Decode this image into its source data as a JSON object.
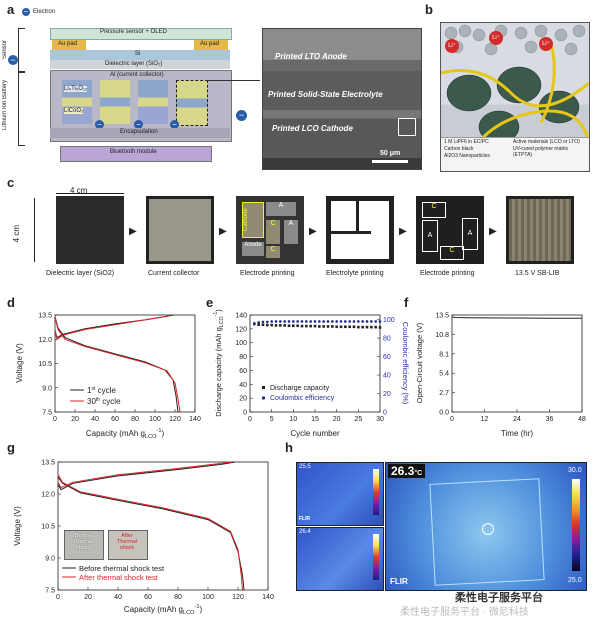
{
  "panel_labels": [
    "a",
    "b",
    "c",
    "d",
    "e",
    "f",
    "g",
    "h"
  ],
  "panel_a": {
    "electron_legend": "Electron",
    "pressure_sensor": "Pressure sensor + OLED",
    "au_pad_left": "Au pad",
    "au_pad_right": "Au pad",
    "si": "Si",
    "sensor": "Sensor",
    "dielectric": "Dielectric layer (SiO₂)",
    "current_collector": "Al (current collector)",
    "lto": "Li₄Ti₅O₁₂",
    "lco": "LiCoO₂",
    "battery": "Lithium Ion Battery",
    "encapsulation": "Encapsulation",
    "bluetooth": "Bluetooth module",
    "sem_anode": "Printed LTO Anode",
    "sem_electrolyte": "Printed Solid-State Electrolyte",
    "sem_cathode": "Printed LCO Cathode",
    "scale": "50 μm"
  },
  "panel_b": {
    "li": "Li⁺",
    "legend": [
      "1 M LiPF6 in EC/PC",
      "Active materials (LCO or LTO)",
      "Carbon black",
      "UV-cured polymer matrix (ETPTA)",
      "Al2O3 Nanoparticles"
    ]
  },
  "panel_c": {
    "width_label": "4 cm",
    "height_label": "4 cm",
    "captions": [
      "Dielectric layer (SiO2)",
      "Current collector",
      "Electrode printing",
      "Electrolyte printing",
      "Electrode printing",
      "13.5 V SB-LIB"
    ],
    "electrode_labels": {
      "cathode": "Cathode",
      "a1": "A",
      "c1": "C",
      "a2": "A",
      "c2": "C",
      "anode": "Anode"
    },
    "electrode2_labels": {
      "c1": "C",
      "a1": "A",
      "a2": "A",
      "c2": "C"
    }
  },
  "colors": {
    "black_series": "#222222",
    "red_series": "#d9252a",
    "navy_series": "#1f2a8a",
    "blue_axis": "#2a2fb0"
  },
  "chart_data": [
    {
      "panel": "d",
      "type": "line",
      "xlabel": "Capacity (mAh g",
      "xlabel_sub": "LCO",
      "xlabel_sup": "-1",
      "xlabel_end": ")",
      "ylabel": "Voltage (V)",
      "xlim": [
        0,
        140
      ],
      "ylim": [
        7.5,
        13.5
      ],
      "xticks": [
        "0",
        "20",
        "40",
        "60",
        "80",
        "100",
        "120",
        "140"
      ],
      "yticks": [
        "7.5",
        "9.0",
        "10.5",
        "12.0",
        "13.5"
      ],
      "series": [
        {
          "name": "1st cycle",
          "name_main": "1",
          "name_sup": "st",
          "name_tail": " cycle",
          "color": "#222222",
          "charge": [
            [
              0,
              12.55
            ],
            [
              2,
              12.1
            ],
            [
              8,
              12.3
            ],
            [
              30,
              12.65
            ],
            [
              60,
              12.95
            ],
            [
              90,
              13.2
            ],
            [
              110,
              13.4
            ],
            [
              118,
              13.5
            ]
          ],
          "discharge": [
            [
              0,
              13.4
            ],
            [
              3,
              12.7
            ],
            [
              10,
              12.1
            ],
            [
              30,
              11.6
            ],
            [
              60,
              11.1
            ],
            [
              90,
              10.6
            ],
            [
              110,
              10.1
            ],
            [
              118,
              9.5
            ],
            [
              121,
              8.5
            ],
            [
              123,
              7.5
            ]
          ]
        },
        {
          "name": "30th cycle",
          "name_main": "30",
          "name_sup": "th",
          "name_tail": " cycle",
          "color": "#d9252a",
          "charge": [
            [
              0,
              12.5
            ],
            [
              2,
              12.0
            ],
            [
              8,
              12.25
            ],
            [
              30,
              12.6
            ],
            [
              60,
              12.9
            ],
            [
              90,
              13.2
            ],
            [
              115,
              13.45
            ],
            [
              120,
              13.5
            ]
          ],
          "discharge": [
            [
              0,
              13.35
            ],
            [
              3,
              12.6
            ],
            [
              10,
              12.0
            ],
            [
              30,
              11.55
            ],
            [
              60,
              11.05
            ],
            [
              90,
              10.55
            ],
            [
              112,
              10.05
            ],
            [
              120,
              9.3
            ],
            [
              123,
              8.3
            ],
            [
              125,
              7.5
            ]
          ]
        }
      ]
    },
    {
      "panel": "e",
      "type": "scatter",
      "xlabel": "Cycle number",
      "ylabel": "Discharge capacity (mAh g",
      "ylabel_sub": "LCO",
      "ylabel_sup": "-1",
      "ylabel_end": ")",
      "y2label": "Coulombic efficiency (%)",
      "xlim": [
        0,
        30
      ],
      "ylim": [
        0,
        140
      ],
      "y2lim": [
        0,
        105
      ],
      "xticks": [
        "0",
        "5",
        "10",
        "15",
        "20",
        "25",
        "30"
      ],
      "yticks": [
        "0",
        "20",
        "40",
        "60",
        "80",
        "100",
        "120",
        "140"
      ],
      "y2ticks": [
        "0",
        "20",
        "40",
        "60",
        "80",
        "100"
      ],
      "series": [
        {
          "name": "Discharge capacity",
          "axis": "left",
          "color": "#222222",
          "values": [
            127,
            126,
            126,
            125.5,
            125.5,
            125,
            125,
            125,
            124.5,
            124.5,
            124.5,
            124,
            124,
            124,
            124,
            123.5,
            123.5,
            123.5,
            123.5,
            123,
            123,
            123,
            123,
            123,
            122.5,
            122.5,
            122.5,
            122.5,
            122.5,
            122
          ]
        },
        {
          "name": "Coulombic efficiency",
          "axis": "right",
          "color": "#1f2a8a",
          "values": [
            96,
            97,
            97.5,
            97.5,
            98,
            98,
            98,
            98,
            98,
            98,
            98,
            98,
            98,
            98,
            98,
            98,
            98,
            98,
            98,
            98,
            98,
            98,
            98,
            98,
            98,
            98,
            98,
            98,
            98,
            98
          ]
        }
      ]
    },
    {
      "panel": "f",
      "type": "line",
      "xlabel": "Time (hr)",
      "ylabel": "Open-Circuit voltage (V)",
      "xlim": [
        0,
        48
      ],
      "ylim": [
        0,
        13.5
      ],
      "xticks": [
        "0",
        "12",
        "24",
        "36",
        "48"
      ],
      "yticks": [
        "0.0",
        "2.7",
        "5.4",
        "8.1",
        "10.8",
        "13.5"
      ],
      "series": [
        {
          "color": "#222222",
          "x": [
            0,
            1,
            6,
            12,
            24,
            36,
            48
          ],
          "y": [
            13.25,
            13.15,
            13.12,
            13.1,
            13.08,
            13.06,
            13.05
          ]
        }
      ]
    },
    {
      "panel": "g",
      "type": "line",
      "xlabel": "Capacity (mAh g",
      "xlabel_sub": "LCO",
      "xlabel_sup": "-1",
      "xlabel_end": ")",
      "ylabel": "Voltage (V)",
      "xlim": [
        0,
        140
      ],
      "ylim": [
        7.5,
        13.5
      ],
      "xticks": [
        "0",
        "20",
        "40",
        "60",
        "80",
        "100",
        "120",
        "140"
      ],
      "yticks": [
        "7.5",
        "9.0",
        "10.5",
        "12.0",
        "13.5"
      ],
      "inset": {
        "before": "Before Thermal shock",
        "after": "After Thermal shock"
      },
      "series": [
        {
          "name": "Before thermal shock test",
          "color": "#222222",
          "charge": [
            [
              0,
              12.45
            ],
            [
              2,
              12.2
            ],
            [
              10,
              12.5
            ],
            [
              40,
              12.85
            ],
            [
              80,
              13.15
            ],
            [
              110,
              13.4
            ],
            [
              118,
              13.5
            ]
          ],
          "discharge": [
            [
              0,
              12.8
            ],
            [
              3,
              12.5
            ],
            [
              15,
              12.05
            ],
            [
              40,
              11.7
            ],
            [
              70,
              11.3
            ],
            [
              100,
              10.8
            ],
            [
              115,
              10.2
            ],
            [
              120,
              9.3
            ],
            [
              123,
              8.2
            ],
            [
              124,
              7.5
            ]
          ]
        },
        {
          "name": "After thermal shock test",
          "color": "#d9252a",
          "charge": [
            [
              0,
              12.55
            ],
            [
              2,
              12.3
            ],
            [
              10,
              12.55
            ],
            [
              40,
              12.9
            ],
            [
              80,
              13.2
            ],
            [
              110,
              13.45
            ],
            [
              116,
              13.5
            ]
          ],
          "discharge": [
            [
              0,
              12.9
            ],
            [
              3,
              12.55
            ],
            [
              15,
              12.1
            ],
            [
              40,
              11.75
            ],
            [
              70,
              11.35
            ],
            [
              100,
              10.85
            ],
            [
              115,
              10.25
            ],
            [
              120,
              9.4
            ],
            [
              122,
              8.3
            ],
            [
              123,
              7.5
            ]
          ]
        }
      ]
    }
  ],
  "panel_h": {
    "small_top_temp": "25.5",
    "small_bottom_temp": "26.4",
    "main_temp": "26.3",
    "main_unit": "°C",
    "scale_max": "30.0",
    "scale_min": "25.0",
    "flir_small": "FLIR",
    "flir_main": "FLIR"
  },
  "watermark": {
    "line1": "柔性电子服务平台",
    "line2": "柔性电子服务平台 · 微尼科技"
  }
}
